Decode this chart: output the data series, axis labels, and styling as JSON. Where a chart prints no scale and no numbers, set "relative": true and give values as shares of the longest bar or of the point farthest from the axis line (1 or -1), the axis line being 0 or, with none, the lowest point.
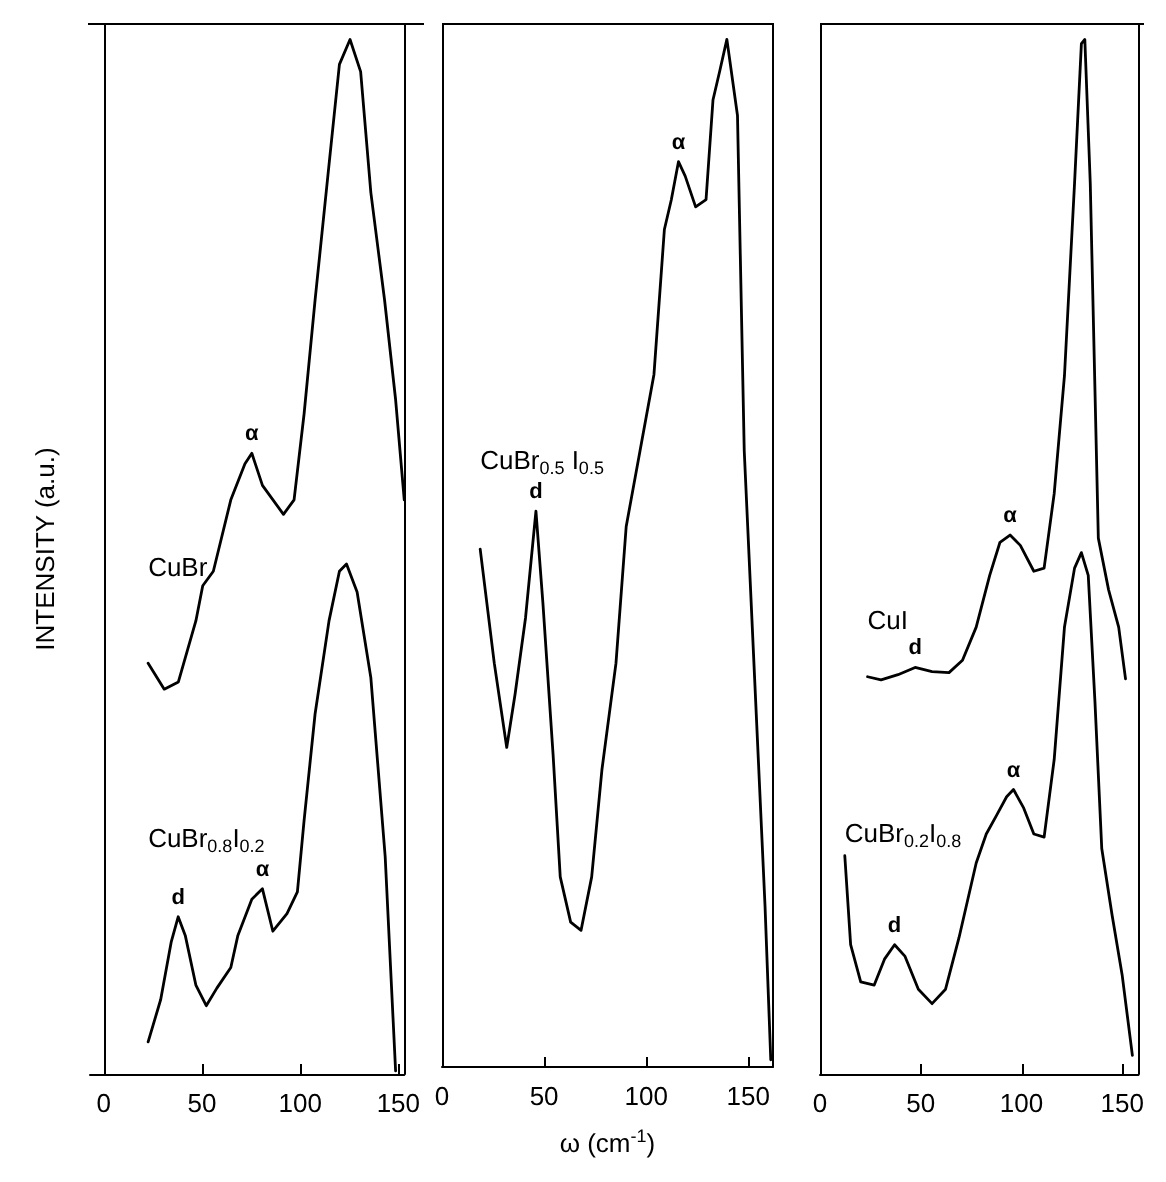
{
  "chart_data": [
    {
      "type": "line",
      "relative": true,
      "ylabel": "INTENSITY (a.u.)",
      "xlim": [
        -7,
        153
      ],
      "xticks": [
        0,
        50,
        100,
        150
      ],
      "marker": "none",
      "line_style": "solid",
      "series": [
        {
          "name": "CuBr",
          "color": "#000000",
          "x": [
            22.6,
            30.8,
            38,
            46.9,
            50.4,
            55.8,
            64.7,
            71.9,
            75.4,
            80.8,
            91.5,
            96.9,
            102,
            107.6,
            114.7,
            120,
            125.4,
            130.8,
            136,
            143,
            148.6,
            153
          ],
          "values": [
            0.397,
            0.372,
            0.379,
            0.438,
            0.472,
            0.486,
            0.555,
            0.59,
            0.6,
            0.569,
            0.541,
            0.555,
            0.638,
            0.748,
            0.879,
            0.976,
            1,
            0.969,
            0.852,
            0.748,
            0.652,
            0.555
          ]
        },
        {
          "name": "CuBr$_{0.8}$I$_{0.2}$",
          "color": "#000000",
          "x": [
            22.6,
            29,
            34.4,
            37.9,
            41.5,
            46.9,
            52.2,
            57.6,
            64.7,
            68.3,
            75.4,
            80.8,
            86.1,
            93.3,
            98.6,
            102,
            107.6,
            114.7,
            120,
            123.6,
            129,
            136,
            143.3,
            148.6
          ],
          "values": [
            0.031,
            0.072,
            0.128,
            0.152,
            0.134,
            0.086,
            0.066,
            0.083,
            0.103,
            0.134,
            0.169,
            0.179,
            0.138,
            0.155,
            0.176,
            0.245,
            0.348,
            0.438,
            0.486,
            0.493,
            0.466,
            0.383,
            0.21,
            0.003
          ]
        }
      ],
      "annotations": [
        {
          "text": "α",
          "x": 75.4,
          "y": 0.6
        },
        {
          "text": "d",
          "x": 37.9,
          "y": 0.152
        },
        {
          "text": "α",
          "x": 80.8,
          "y": 0.179
        }
      ]
    },
    {
      "type": "line",
      "relative": true,
      "xlabel": "ω (cm$^{-1}$)",
      "xlim": [
        0,
        162
      ],
      "xticks": [
        0,
        50,
        100,
        150
      ],
      "marker": "none",
      "line_style": "solid",
      "series": [
        {
          "name": "CuBr$_{0.5}$ I$_{0.5}$",
          "color": "#000000",
          "x": [
            18.7,
            25.6,
            31.7,
            35.8,
            40.9,
            46,
            49.4,
            54.4,
            57.9,
            63,
            68.1,
            73.3,
            78.3,
            85.2,
            90.2,
            97,
            103.8,
            108.9,
            112.3,
            115.8,
            119.1,
            124.2,
            129.3,
            132.7,
            136.1,
            139.5,
            144.7,
            148,
            153.1,
            158.2,
            161
          ],
          "values": [
            0.504,
            0.393,
            0.311,
            0.363,
            0.437,
            0.541,
            0.452,
            0.304,
            0.185,
            0.141,
            0.133,
            0.185,
            0.289,
            0.393,
            0.526,
            0.6,
            0.674,
            0.815,
            0.844,
            0.881,
            0.867,
            0.837,
            0.844,
            0.941,
            0.97,
            1,
            0.926,
            0.6,
            0.378,
            0.156,
            0.007
          ]
        }
      ],
      "annotations": [
        {
          "text": "d",
          "x": 46,
          "y": 0.541
        },
        {
          "text": "α",
          "x": 115.8,
          "y": 0.881
        }
      ]
    },
    {
      "type": "line",
      "relative": true,
      "xlim": [
        0,
        158
      ],
      "xticks": [
        0,
        50,
        100,
        150
      ],
      "marker": "none",
      "line_style": "solid",
      "series": [
        {
          "name": "CuI",
          "color": "#000000",
          "x": [
            23.6,
            30.3,
            38.7,
            47.2,
            55.6,
            64,
            70.7,
            77.5,
            84.2,
            89.3,
            94.3,
            99.4,
            106.1,
            111.2,
            116.2,
            121.3,
            126.3,
            129.7,
            131.4,
            134.1,
            138.1,
            143.2,
            148.2,
            151.6
          ],
          "values": [
            0.384,
            0.381,
            0.386,
            0.393,
            0.389,
            0.388,
            0.4,
            0.432,
            0.482,
            0.514,
            0.521,
            0.511,
            0.486,
            0.489,
            0.561,
            0.675,
            0.861,
            0.996,
            1,
            0.861,
            0.518,
            0.468,
            0.432,
            0.382
          ]
        },
        {
          "name": "CuBr$_{0.2}$I$_{0.8}$",
          "color": "#000000",
          "x": [
            12.3,
            15.2,
            20.2,
            26.9,
            32,
            37,
            42.1,
            48.8,
            55.6,
            62.3,
            69,
            77.5,
            82.5,
            87.6,
            92.6,
            96,
            101.1,
            106.1,
            111.2,
            116.2,
            121.3,
            126.3,
            129.7,
            133.1,
            136.4,
            139.8,
            144.9,
            149.9,
            155
          ],
          "values": [
            0.211,
            0.125,
            0.089,
            0.086,
            0.111,
            0.125,
            0.114,
            0.082,
            0.068,
            0.082,
            0.132,
            0.204,
            0.232,
            0.25,
            0.268,
            0.275,
            0.257,
            0.232,
            0.229,
            0.304,
            0.432,
            0.489,
            0.504,
            0.482,
            0.361,
            0.218,
            0.154,
            0.096,
            0.018
          ]
        }
      ],
      "annotations": [
        {
          "text": "d",
          "x": 47.2,
          "y": 0.393
        },
        {
          "text": "α",
          "x": 94.3,
          "y": 0.521
        },
        {
          "text": "d",
          "x": 37,
          "y": 0.125
        },
        {
          "text": "α",
          "x": 96,
          "y": 0.275
        }
      ]
    }
  ]
}
